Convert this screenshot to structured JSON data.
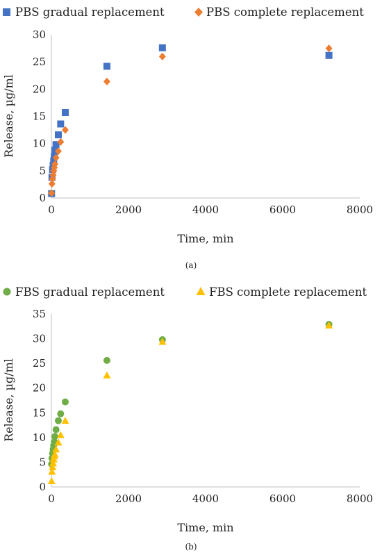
{
  "chart_data": [
    {
      "type": "scatter",
      "caption": "(a)",
      "title": "",
      "xlabel": "Time, min",
      "ylabel": "Release, µg/ml",
      "xlim": [
        0,
        8000
      ],
      "ylim": [
        0,
        30
      ],
      "xticks": [
        0,
        2000,
        4000,
        6000,
        8000
      ],
      "yticks": [
        0,
        5,
        10,
        15,
        20,
        25,
        30
      ],
      "grid": false,
      "legend": "top",
      "series": [
        {
          "name": "PBS gradual replacement",
          "marker": "square",
          "color": "#4472C4",
          "x": [
            5,
            15,
            30,
            45,
            60,
            75,
            90,
            120,
            180,
            240,
            360,
            1440,
            2880,
            7200
          ],
          "y": [
            0.8,
            3.8,
            5.2,
            6.0,
            6.8,
            7.6,
            8.8,
            9.8,
            11.6,
            13.6,
            15.7,
            24.2,
            27.6,
            26.2
          ]
        },
        {
          "name": "PBS complete replacement",
          "marker": "diamond",
          "color": "#ED7D31",
          "x": [
            5,
            15,
            30,
            45,
            60,
            75,
            90,
            120,
            180,
            240,
            360,
            1440,
            2880,
            7200
          ],
          "y": [
            0.9,
            2.6,
            3.5,
            4.2,
            5.0,
            5.6,
            6.2,
            7.4,
            8.6,
            10.3,
            12.5,
            21.4,
            26.0,
            27.5
          ]
        }
      ]
    },
    {
      "type": "scatter",
      "caption": "(b)",
      "title": "",
      "xlabel": "Time, min",
      "ylabel": "Release, µg/ml",
      "xlim": [
        0,
        8000
      ],
      "ylim": [
        0,
        35
      ],
      "xticks": [
        0,
        2000,
        4000,
        6000,
        8000
      ],
      "yticks": [
        0,
        5,
        10,
        15,
        20,
        25,
        30,
        35
      ],
      "grid": false,
      "legend": "top",
      "series": [
        {
          "name": "FBS gradual replacement",
          "marker": "circle",
          "color": "#70AD47",
          "x": [
            5,
            15,
            30,
            45,
            60,
            75,
            90,
            120,
            180,
            240,
            360,
            1440,
            2880,
            7200
          ],
          "y": [
            4.6,
            5.8,
            6.8,
            7.6,
            8.4,
            9.1,
            10.2,
            11.6,
            13.4,
            14.8,
            17.2,
            25.6,
            29.8,
            32.9
          ]
        },
        {
          "name": "FBS complete replacement",
          "marker": "triangle",
          "color": "#FFC000",
          "x": [
            5,
            15,
            30,
            45,
            60,
            75,
            90,
            120,
            180,
            240,
            360,
            1440,
            2880,
            7200
          ],
          "y": [
            1.2,
            3.1,
            4.0,
            4.8,
            5.6,
            6.2,
            6.6,
            7.6,
            9.0,
            10.5,
            13.4,
            22.6,
            29.4,
            32.7
          ]
        }
      ]
    }
  ]
}
